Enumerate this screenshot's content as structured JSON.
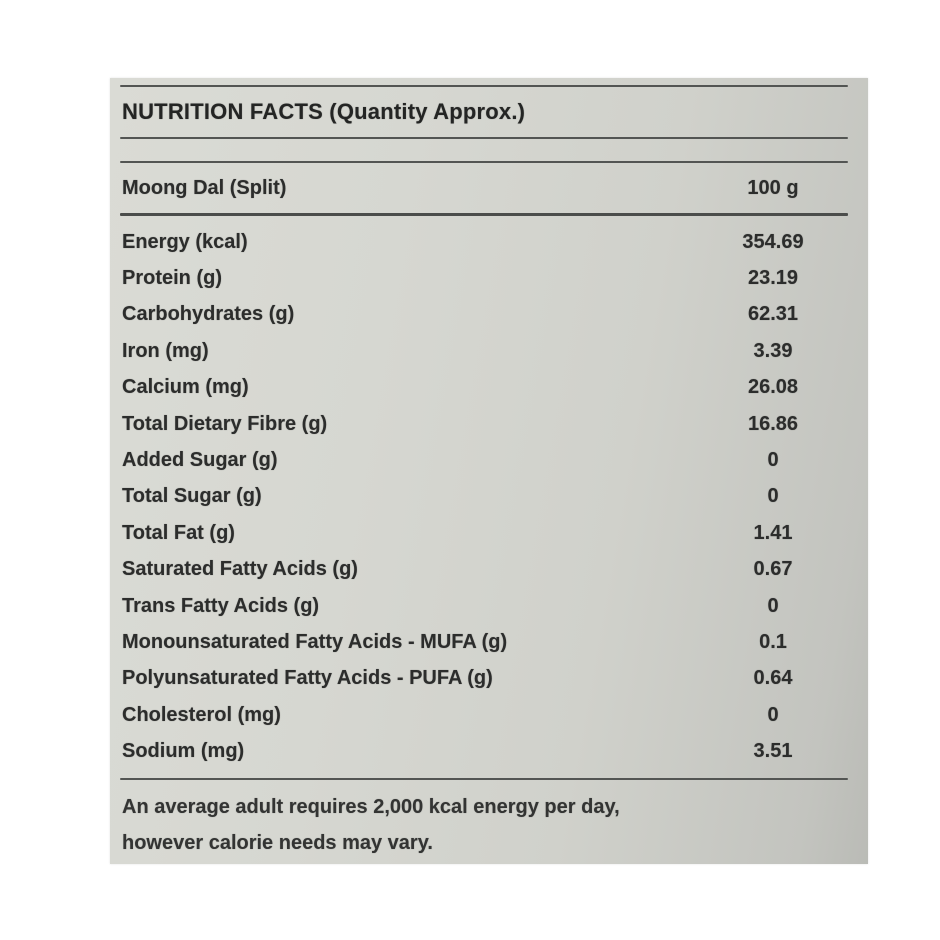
{
  "label": {
    "title": "NUTRITION FACTS (Quantity Approx.)",
    "header": {
      "product_name": "Moong Dal (Split)",
      "serving_size": "100 g"
    },
    "rows": [
      {
        "name": "Energy (kcal)",
        "value": "354.69"
      },
      {
        "name": "Protein (g)",
        "value": "23.19"
      },
      {
        "name": "Carbohydrates (g)",
        "value": "62.31"
      },
      {
        "name": "Iron (mg)",
        "value": "3.39"
      },
      {
        "name": "Calcium (mg)",
        "value": "26.08"
      },
      {
        "name": "Total Dietary Fibre (g)",
        "value": "16.86"
      },
      {
        "name": "Added Sugar (g)",
        "value": "0"
      },
      {
        "name": "Total Sugar (g)",
        "value": "0"
      },
      {
        "name": "Total Fat (g)",
        "value": "1.41"
      },
      {
        "name": "Saturated Fatty Acids (g)",
        "value": "0.67"
      },
      {
        "name": "Trans Fatty Acids (g)",
        "value": "0"
      },
      {
        "name": "Monounsaturated Fatty Acids - MUFA (g)",
        "value": "0.1"
      },
      {
        "name": "Polyunsaturated Fatty Acids - PUFA (g)",
        "value": "0.64"
      },
      {
        "name": "Cholesterol (mg)",
        "value": "0"
      },
      {
        "name": "Sodium (mg)",
        "value": "3.51"
      }
    ],
    "footnote": {
      "line1": "An average adult requires 2,000 kcal energy per day,",
      "line2": "however calorie needs may vary."
    },
    "colors": {
      "card_bg": "#d3d4ce",
      "text": "#2c2d2c",
      "rule": "#535553"
    }
  }
}
